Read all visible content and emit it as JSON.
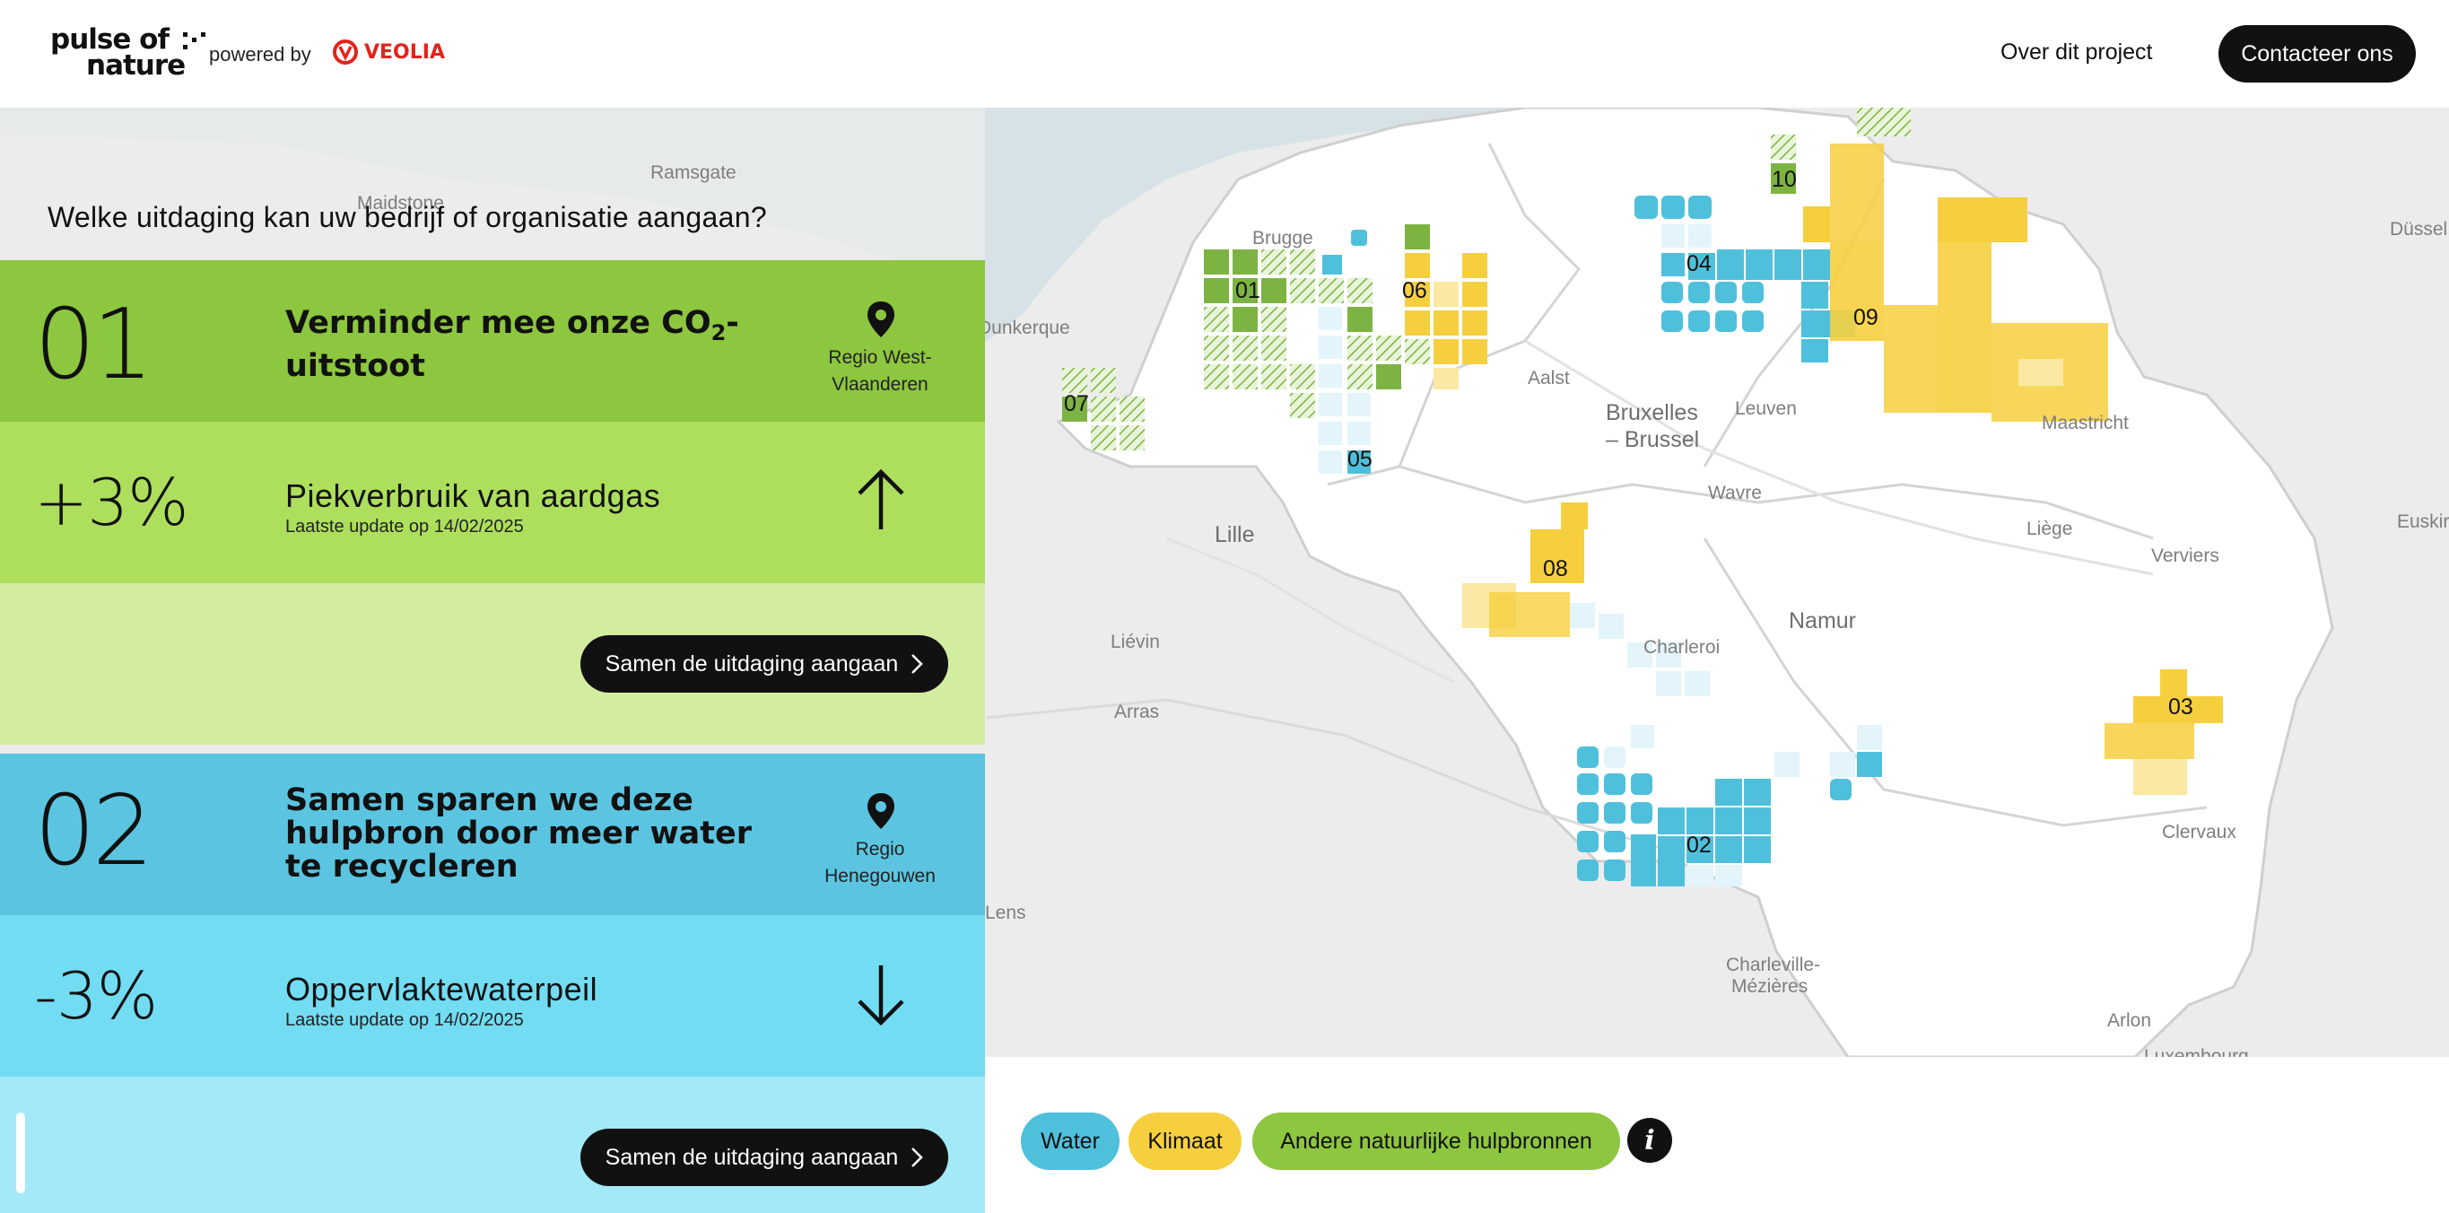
{
  "header": {
    "logo_line1": "pulse of",
    "logo_line2": "nature",
    "powered_by": "powered by",
    "partner": "VEOLIA",
    "nav_about": "Over dit project",
    "contact_button": "Contacteer ons"
  },
  "panel": {
    "question": "Welke uitdaging kan uw bedrijf of organisatie aangaan?",
    "challenges": [
      {
        "number": "01",
        "title_main": "Verminder mee onze CO",
        "title_sub": "2",
        "title_end": "-uitstoot",
        "region_line1": "Regio West-",
        "region_line2": "Vlaanderen",
        "change": "+3%",
        "metric": "Piekverbruik van aardgas",
        "updated": "Laatste update op 14/02/2025",
        "trend": "up",
        "cta": "Samen de uitdaging aangaan",
        "colors": {
          "top": "#8dc63f",
          "mid": "#addf5d",
          "bottom": "#d2eda0"
        }
      },
      {
        "number": "02",
        "title": "Samen sparen we deze hulpbron door meer water te recycleren",
        "region_line1": "Regio",
        "region_line2": "Henegouwen",
        "change": "-3%",
        "metric": "Oppervlaktewaterpeil",
        "updated": "Laatste update op 14/02/2025",
        "trend": "down",
        "cta": "Samen de uitdaging aangaan",
        "colors": {
          "top": "#5bc5e1",
          "mid": "#72dcf3",
          "bottom": "#a3e9f8"
        }
      }
    ]
  },
  "map": {
    "places": [
      "Ramsgate",
      "Maidstone",
      "Brugge",
      "Dunkerque",
      "Aalst",
      "Bruxelles",
      "– Brussel",
      "Leuven",
      "Maastricht",
      "Lille",
      "Wavre",
      "Liège",
      "Verviers",
      "Liévin",
      "Namur",
      "Charleroi",
      "Arras",
      "Lens",
      "Clervaux",
      "Charleville-",
      "Mézières",
      "Arlon",
      "Luxembourg",
      "Düssel",
      "Euskir"
    ],
    "tiles": [
      "01",
      "02",
      "03",
      "04",
      "05",
      "06",
      "07",
      "08",
      "09",
      "10"
    ],
    "colors": {
      "water": "#4fc0dc",
      "climate": "#f6cf3e",
      "nature": "#7cb342",
      "land": "#ffffff",
      "sea": "#d7e2e6",
      "outside": "#ececec"
    }
  },
  "legend": {
    "water": "Water",
    "climate": "Klimaat",
    "nature": "Andere natuurlijke hulpbronnen",
    "info_icon": "i"
  }
}
